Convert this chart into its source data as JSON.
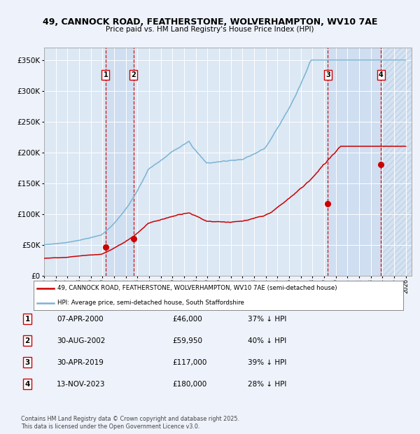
{
  "title1": "49, CANNOCK ROAD, FEATHERSTONE, WOLVERHAMPTON, WV10 7AE",
  "title2": "Price paid vs. HM Land Registry's House Price Index (HPI)",
  "legend_line1": "49, CANNOCK ROAD, FEATHERSTONE, WOLVERHAMPTON, WV10 7AE (semi-detached house)",
  "legend_line2": "HPI: Average price, semi-detached house, South Staffordshire",
  "transactions": [
    {
      "num": 1,
      "date": "07-APR-2000",
      "price": 46000,
      "pct": "37% ↓ HPI",
      "year_x": 2000.27
    },
    {
      "num": 2,
      "date": "30-AUG-2002",
      "price": 59950,
      "pct": "40% ↓ HPI",
      "year_x": 2002.66
    },
    {
      "num": 3,
      "date": "30-APR-2019",
      "price": 117000,
      "pct": "39% ↓ HPI",
      "year_x": 2019.33
    },
    {
      "num": 4,
      "date": "13-NOV-2023",
      "price": 180000,
      "pct": "28% ↓ HPI",
      "year_x": 2023.87
    }
  ],
  "hpi_color": "#7ab3d4",
  "price_color": "#cc0000",
  "bg_color": "#eef2fa",
  "plot_bg": "#dce8f4",
  "transaction_shade": "#cdddf0",
  "footnote1": "Contains HM Land Registry data © Crown copyright and database right 2025.",
  "footnote2": "This data is licensed under the Open Government Licence v3.0.",
  "ylim": [
    0,
    370000
  ],
  "xmin": 1995.0,
  "xmax": 2026.5
}
